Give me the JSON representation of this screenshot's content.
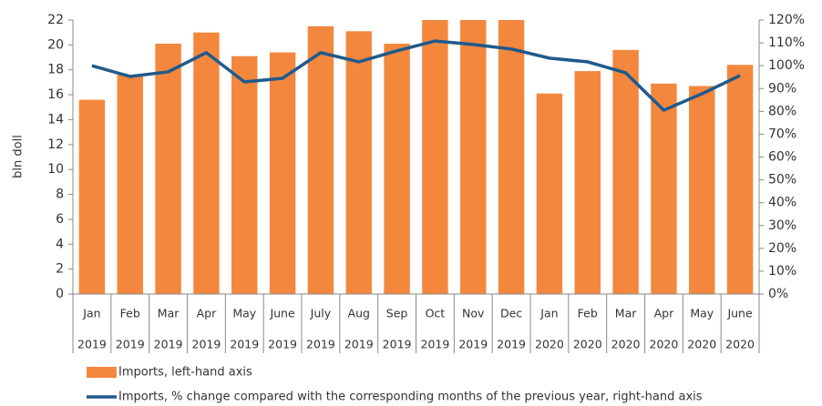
{
  "chart_data": {
    "type": "bar_line",
    "y_axis_label": "bln doll",
    "categories": [
      "Jan",
      "Feb",
      "Mar",
      "Apr",
      "May",
      "June",
      "July",
      "Aug",
      "Sep",
      "Oct",
      "Nov",
      "Dec",
      "Jan",
      "Feb",
      "Mar",
      "Apr",
      "May",
      "June"
    ],
    "category_years": [
      "2019",
      "2019",
      "2019",
      "2019",
      "2019",
      "2019",
      "2019",
      "2019",
      "2019",
      "2019",
      "2019",
      "2019",
      "2020",
      "2020",
      "2020",
      "2020",
      "2020",
      "2020"
    ],
    "series": [
      {
        "name": "Imports, left-hand axis",
        "kind": "bar",
        "color": "#f4873e",
        "values": [
          15.6,
          17.6,
          20.1,
          21.0,
          19.1,
          19.4,
          21.5,
          21.1,
          20.1,
          22,
          22,
          22,
          16.1,
          17.9,
          19.6,
          16.9,
          16.7,
          18.4
        ]
      },
      {
        "name": "Imports, % change compared with the corresponding months of the previous year, right-hand axis",
        "kind": "line",
        "axis": "y2",
        "color": "#1f5a8c",
        "values": [
          100,
          95.3,
          97.3,
          105.7,
          92.9,
          94.5,
          105.7,
          101.7,
          106.5,
          110.8,
          109.3,
          107.3,
          103.3,
          101.7,
          96.9,
          80.5,
          87.7,
          95.7
        ]
      }
    ],
    "ylim": [
      0,
      22
    ],
    "yticks": [
      0,
      2,
      4,
      6,
      8,
      10,
      12,
      14,
      16,
      18,
      20,
      22
    ],
    "y2lim": [
      0,
      120
    ],
    "y2ticks": [
      {
        "value": 0,
        "label": "0%"
      },
      {
        "value": 10,
        "label": "10%"
      },
      {
        "value": 20,
        "label": "20%"
      },
      {
        "value": 30,
        "label": "30%"
      },
      {
        "value": 40,
        "label": "40%"
      },
      {
        "value": 50,
        "label": "50%"
      },
      {
        "value": 60,
        "label": "60%"
      },
      {
        "value": 70,
        "label": "70%"
      },
      {
        "value": 80,
        "label": "80%"
      },
      {
        "value": 90,
        "label": "90%"
      },
      {
        "value": 100,
        "label": "100%"
      },
      {
        "value": 110,
        "label": "110%"
      },
      {
        "value": 120,
        "label": "120%"
      }
    ],
    "legend": "bottom-left"
  }
}
